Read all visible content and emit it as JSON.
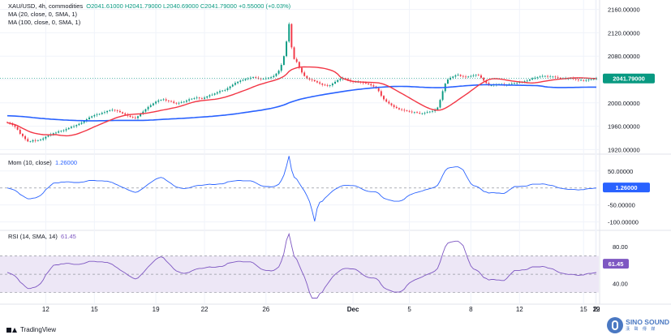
{
  "legend": {
    "symbol": "XAU/USD, 4h, commodities",
    "ohlc": "O2041.61000  H2041.79000  L2040.69000  C2041.79000  +0.55000 (+0.03%)",
    "ma20": "MA (20, close, 0, SMA, 1)",
    "ma100": "MA (100, close, 0, SMA, 1)",
    "mom": "Mom (10, close)",
    "mom_value": "1.26000",
    "rsi": "RSI (14, SMA, 14)",
    "rsi_value": "61.45"
  },
  "footer": {
    "brand": "TradingView"
  },
  "watermark": {
    "name": "SINO SOUND",
    "sub": "漢 聲 傳 媒"
  },
  "colors": {
    "up": "#089981",
    "down": "#f23645",
    "ma20": "#f23645",
    "ma100": "#2962ff",
    "mom": "#2962ff",
    "rsi": "#7e57c2",
    "rsi_band": "#ede7f6",
    "price_tag": "#089981",
    "grid": "#f0f3fa",
    "axis_text": "#131722",
    "dashed": "#9598a1"
  },
  "chart_data": [
    {
      "type": "candlestick",
      "title": "XAU/USD, 4h, commodities",
      "xlabel": "",
      "ylabel": "",
      "x_ticks": [
        "12",
        "15",
        "19",
        "22",
        "26",
        "Dec",
        "5",
        "8",
        "12",
        "15",
        "19",
        "22",
        "2"
      ],
      "y_ticks": [
        "2160.00000",
        "2120.00000",
        "2080.00000",
        "2040.00000",
        "2000.00000",
        "1960.00000",
        "1920.00000"
      ],
      "ylim": [
        1915,
        2165
      ],
      "last_price": 2041.79,
      "last_price_label": "2041.79000",
      "close": [
        1966,
        1964,
        1962,
        1959,
        1954,
        1947,
        1943,
        1938,
        1934,
        1934,
        1936,
        1935,
        1936,
        1937,
        1939,
        1942,
        1944,
        1946,
        1948,
        1949,
        1951,
        1952,
        1953,
        1955,
        1957,
        1959,
        1960,
        1962,
        1964,
        1966,
        1969,
        1972,
        1975,
        1977,
        1979,
        1980,
        1981,
        1983,
        1984,
        1986,
        1987,
        1988,
        1987,
        1986,
        1984,
        1982,
        1980,
        1978,
        1976,
        1975,
        1974,
        1977,
        1981,
        1985,
        1989,
        1993,
        1996,
        1999,
        2002,
        2004,
        2005,
        2006,
        2004,
        2003,
        2002,
        2000,
        1999,
        2000,
        2001,
        2002,
        2004,
        2006,
        2007,
        2008,
        2009,
        2008,
        2007,
        2009,
        2011,
        2013,
        2014,
        2016,
        2018,
        2020,
        2021,
        2022,
        2025,
        2028,
        2031,
        2034,
        2036,
        2038,
        2039,
        2041,
        2042,
        2043,
        2044,
        2043,
        2042,
        2041,
        2041,
        2042,
        2043,
        2044,
        2046,
        2050,
        2055,
        2065,
        2080,
        2105,
        2135,
        2095,
        2075,
        2070,
        2060,
        2052,
        2046,
        2042,
        2040,
        2039,
        2037,
        2035,
        2033,
        2031,
        2030,
        2029,
        2030,
        2033,
        2036,
        2039,
        2041,
        2042,
        2041,
        2039,
        2037,
        2036,
        2036,
        2036,
        2035,
        2034,
        2033,
        2032,
        2030,
        2028,
        2025,
        2020,
        2012,
        2006,
        2002,
        1999,
        1996,
        1993,
        1991,
        1989,
        1988,
        1987,
        1986,
        1985,
        1984,
        1984,
        1983,
        1982,
        1982,
        1983,
        1984,
        1985,
        1986,
        1988,
        1992,
        2005,
        2020,
        2033,
        2040,
        2043,
        2045,
        2047,
        2048,
        2046,
        2045,
        2044,
        2045,
        2046,
        2047,
        2048,
        2047,
        2043,
        2038,
        2034,
        2030,
        2030,
        2031,
        2031,
        2032,
        2032,
        2031,
        2031,
        2032,
        2033,
        2034,
        2034,
        2035,
        2036,
        2037,
        2038,
        2040,
        2042,
        2043,
        2044,
        2045,
        2046,
        2046,
        2045,
        2045,
        2045,
        2044,
        2043,
        2042,
        2042,
        2042,
        2042,
        2042,
        2041,
        2040,
        2039,
        2039,
        2038,
        2039,
        2040,
        2040,
        2041,
        2041.79
      ],
      "series": [
        {
          "name": "MA (20, close, 0, SMA, 1)",
          "color": "#f23645"
        },
        {
          "name": "MA (100, close, 0, SMA, 1)",
          "color": "#2962ff"
        }
      ]
    },
    {
      "type": "line",
      "title": "Mom (10, close)",
      "y_ticks": [
        "50.00000",
        "-50.00000",
        "-100.00000"
      ],
      "ylim": [
        -120,
        90
      ],
      "last_value_label": "1.26000",
      "series": [
        {
          "name": "Mom (10, close)",
          "color": "#2962ff"
        }
      ]
    },
    {
      "type": "line",
      "title": "RSI (14, SMA, 14)",
      "y_ticks": [
        "80.00",
        "40.00"
      ],
      "ylim": [
        20,
        97
      ],
      "band": [
        30,
        70
      ],
      "last_value_label": "61.45",
      "series": [
        {
          "name": "RSI (14, SMA, 14)",
          "color": "#7e57c2"
        }
      ]
    }
  ]
}
